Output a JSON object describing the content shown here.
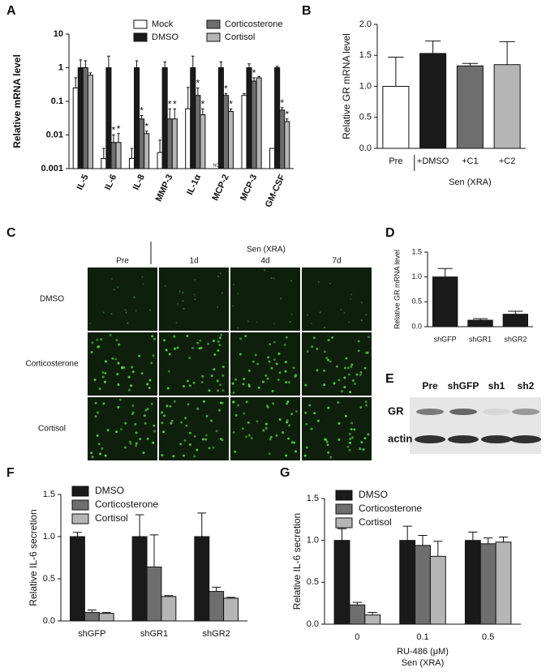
{
  "chart_data": [
    {
      "type": "bar",
      "panel": "A",
      "ylabel": "Relative mRNA level",
      "log": true,
      "ylim": [
        0.001,
        10
      ],
      "yticks": [
        0.001,
        0.01,
        0.1,
        1,
        10
      ],
      "legend": "top",
      "categories": [
        "IL-5",
        "IL-6",
        "IL-8",
        "MMP-3",
        "IL-1α",
        "MCP-2",
        "MCP-3",
        "GM-CSF"
      ],
      "series": [
        {
          "name": "Mock",
          "color": "#ffffff",
          "values": [
            0.25,
            0.002,
            0.002,
            0.003,
            0.06,
            null,
            0.15,
            0.004
          ],
          "errors": [
            0.25,
            0.002,
            0.002,
            0.004,
            0.2,
            null,
            0.02,
            null
          ],
          "annotations": [
            null,
            null,
            null,
            null,
            null,
            "ND",
            null,
            null
          ]
        },
        {
          "name": "DMSO",
          "color": "#1a1a1a",
          "values": [
            1,
            1,
            1,
            1,
            1,
            1,
            1,
            1
          ],
          "errors": [
            0.7,
            1.2,
            0.6,
            0.5,
            1.2,
            0.5,
            0.3,
            0.1
          ]
        },
        {
          "name": "Corticosterone",
          "color": "#6e6e6e",
          "values": [
            1,
            0.006,
            0.03,
            0.03,
            0.15,
            0.15,
            0.4,
            0.055
          ],
          "errors": [
            0.6,
            0.004,
            0.008,
            0.03,
            0.1,
            0.02,
            0.1,
            0.01
          ],
          "annotations": [
            null,
            "*",
            "*",
            "*",
            "*",
            "*",
            "*",
            "*"
          ]
        },
        {
          "name": "Cortisol",
          "color": "#b5b5b5",
          "values": [
            0.6,
            0.006,
            0.011,
            0.03,
            0.04,
            0.05,
            0.5,
            0.025
          ],
          "errors": [
            0.1,
            0.005,
            0.002,
            0.03,
            0.02,
            0.01,
            0.05,
            0.005
          ],
          "annotations": [
            null,
            "*",
            "*",
            "*",
            "*",
            "*",
            null,
            "*"
          ]
        }
      ]
    },
    {
      "type": "bar",
      "panel": "B",
      "ylabel": "Relative GR mRNA level",
      "xlabel": "Sen (XRA)",
      "ylim": [
        0,
        2
      ],
      "yticks": [
        {
          "value": 0,
          "label": "0.0"
        },
        {
          "value": 0.5,
          "label": "0.5"
        },
        {
          "value": 1,
          "label": "1.0"
        },
        {
          "value": 1.5,
          "label": "1.5"
        },
        {
          "value": 2,
          "label": "2.0"
        }
      ],
      "categories": [
        "Pre",
        "+DMSO",
        "+C1",
        "+C2"
      ],
      "values": [
        1.0,
        1.53,
        1.33,
        1.35
      ],
      "errors": [
        0.47,
        0.2,
        0.04,
        0.37
      ],
      "colors": [
        "#ffffff",
        "#1a1a1a",
        "#6e6e6e",
        "#b5b5b5"
      ]
    },
    {
      "type": "image-grid",
      "panel": "C",
      "header": "Sen (XRA)",
      "columns": [
        "Pre",
        "1d",
        "4d",
        "7d"
      ],
      "rows": [
        "DMSO",
        "Corticosterone",
        "Cortisol"
      ]
    },
    {
      "type": "bar",
      "panel": "D",
      "ylabel": "Relative GR mRNA level",
      "ylim": [
        0,
        1.5
      ],
      "yticks": [
        {
          "value": 0,
          "label": "0.0"
        },
        {
          "value": 0.5,
          "label": "0.5"
        },
        {
          "value": 1,
          "label": "1.0"
        },
        {
          "value": 1.5,
          "label": "1.5"
        }
      ],
      "categories": [
        "shGFP",
        "shGR1",
        "shGR2"
      ],
      "values": [
        1.0,
        0.13,
        0.25
      ],
      "errors": [
        0.17,
        0.03,
        0.06
      ],
      "color": "#1a1a1a"
    },
    {
      "type": "blot",
      "panel": "E",
      "lanes": [
        "Pre",
        "shGFP",
        "sh1",
        "sh2"
      ],
      "bands": [
        "GR",
        "actin"
      ]
    },
    {
      "type": "bar",
      "panel": "F",
      "ylabel": "Relative IL-6 secretion",
      "legend": "upper-left",
      "ylim": [
        0,
        1.5
      ],
      "yticks": [
        {
          "value": 0,
          "label": "0.0"
        },
        {
          "value": 0.5,
          "label": "0.5"
        },
        {
          "value": 1,
          "label": "1.0"
        },
        {
          "value": 1.5,
          "label": "1.5"
        }
      ],
      "categories": [
        "shGFP",
        "shGR1",
        "shGR2"
      ],
      "series": [
        {
          "name": "DMSO",
          "color": "#1a1a1a",
          "values": [
            1.0,
            1.0,
            1.0
          ],
          "errors": [
            0.05,
            0.26,
            0.28
          ]
        },
        {
          "name": "Corticosterone",
          "color": "#6e6e6e",
          "values": [
            0.1,
            0.64,
            0.35
          ],
          "errors": [
            0.03,
            0.38,
            0.05
          ]
        },
        {
          "name": "Cortisol",
          "color": "#b5b5b5",
          "values": [
            0.09,
            0.29,
            0.27
          ],
          "errors": [
            0.01,
            0.01,
            0.01
          ]
        }
      ]
    },
    {
      "type": "bar",
      "panel": "G",
      "ylabel": "Relative IL-6 secretion",
      "xlabel": "RU-486 (μM)",
      "xlabel2": "Sen (XRA)",
      "legend": "upper-left",
      "ylim": [
        0,
        1.5
      ],
      "yticks": [
        {
          "value": 0,
          "label": "0.0"
        },
        {
          "value": 0.5,
          "label": "0.5"
        },
        {
          "value": 1,
          "label": "1.0"
        },
        {
          "value": 1.5,
          "label": "1.5"
        }
      ],
      "categories": [
        "0",
        "0.1",
        "0.5"
      ],
      "series": [
        {
          "name": "DMSO",
          "color": "#1a1a1a",
          "values": [
            1.0,
            1.0,
            1.0
          ],
          "errors": [
            0.14,
            0.17,
            0.1
          ]
        },
        {
          "name": "Corticosterone",
          "color": "#6e6e6e",
          "values": [
            0.23,
            0.94,
            0.96
          ],
          "errors": [
            0.03,
            0.12,
            0.07
          ]
        },
        {
          "name": "Cortisol",
          "color": "#b5b5b5",
          "values": [
            0.11,
            0.81,
            0.98
          ],
          "errors": [
            0.03,
            0.18,
            0.06
          ]
        }
      ]
    }
  ]
}
